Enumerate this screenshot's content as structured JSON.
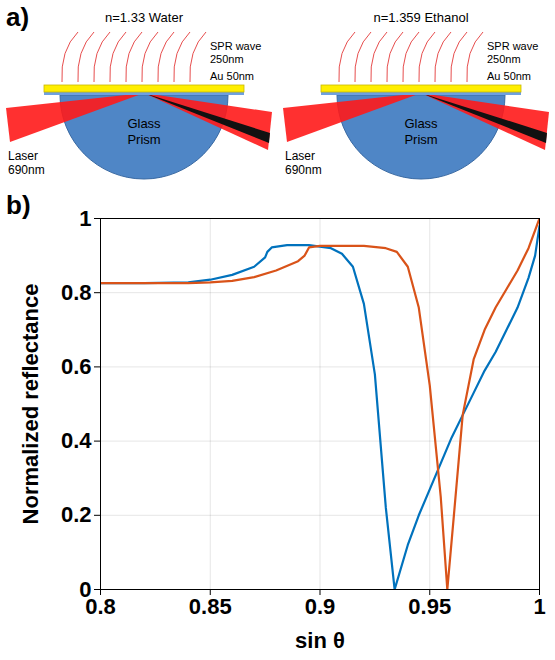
{
  "diagram": {
    "label": "a)",
    "panels": [
      {
        "medium": "n=1.33 Water",
        "spr": [
          "SPR wave",
          "250nm"
        ],
        "film": "Au 50nm",
        "laser": [
          "Laser",
          "690nm"
        ],
        "prism": [
          "Glass",
          "Prism"
        ]
      },
      {
        "medium": "n=1.359 Ethanol",
        "spr": [
          "SPR wave",
          "250nm"
        ],
        "film": "Au 50nm",
        "laser": [
          "Laser",
          "690nm"
        ],
        "prism": [
          "Glass",
          "Prism"
        ]
      }
    ]
  },
  "chart_data": {
    "type": "line",
    "title": "b)",
    "xlabel": "sin θ",
    "ylabel": "Normalized reflectance",
    "xlim": [
      0.8,
      1
    ],
    "ylim": [
      0,
      1
    ],
    "xticks": [
      0.8,
      0.85,
      0.9,
      0.95,
      1
    ],
    "yticks": [
      0,
      0.2,
      0.4,
      0.6,
      0.8,
      1
    ],
    "grid": true,
    "series": [
      {
        "color": "#0072BD",
        "x": [
          0.8,
          0.82,
          0.84,
          0.85,
          0.86,
          0.87,
          0.875,
          0.876,
          0.878,
          0.885,
          0.895,
          0.905,
          0.91,
          0.915,
          0.92,
          0.925,
          0.93,
          0.934,
          0.94,
          0.945,
          0.95,
          0.955,
          0.96,
          0.965,
          0.97,
          0.975,
          0.98,
          0.985,
          0.99,
          0.995,
          0.998,
          1.0
        ],
        "values": [
          0.826,
          0.826,
          0.828,
          0.835,
          0.848,
          0.87,
          0.895,
          0.91,
          0.922,
          0.928,
          0.928,
          0.92,
          0.905,
          0.87,
          0.77,
          0.58,
          0.22,
          0.0,
          0.12,
          0.2,
          0.27,
          0.34,
          0.41,
          0.47,
          0.53,
          0.59,
          0.64,
          0.7,
          0.76,
          0.84,
          0.9,
          0.98
        ]
      },
      {
        "color": "#D95319",
        "x": [
          0.8,
          0.82,
          0.84,
          0.85,
          0.86,
          0.87,
          0.88,
          0.89,
          0.893,
          0.895,
          0.9,
          0.91,
          0.92,
          0.93,
          0.935,
          0.94,
          0.945,
          0.95,
          0.955,
          0.958,
          0.961,
          0.965,
          0.97,
          0.975,
          0.98,
          0.985,
          0.99,
          0.995,
          1.0
        ],
        "values": [
          0.826,
          0.826,
          0.826,
          0.828,
          0.832,
          0.842,
          0.86,
          0.885,
          0.9,
          0.922,
          0.926,
          0.926,
          0.926,
          0.92,
          0.91,
          0.87,
          0.76,
          0.55,
          0.25,
          0.0,
          0.2,
          0.47,
          0.62,
          0.7,
          0.76,
          0.81,
          0.86,
          0.92,
          1.0
        ]
      }
    ]
  }
}
